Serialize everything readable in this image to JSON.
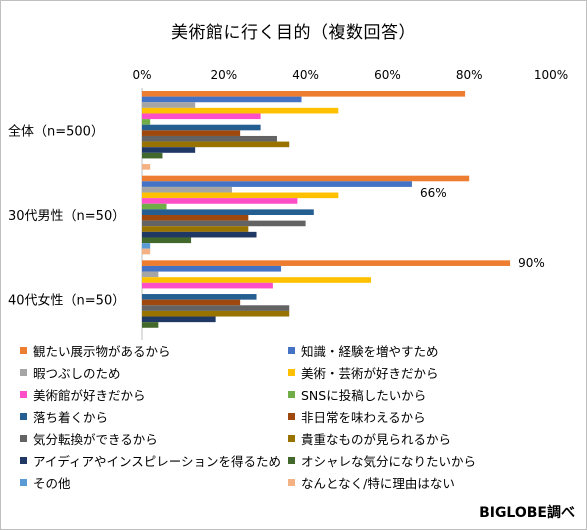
{
  "chart_data": {
    "type": "bar",
    "orientation": "horizontal",
    "title": "美術館に行く目的（複数回答）",
    "xlim": [
      0,
      100
    ],
    "x_ticks": [
      "0%",
      "20%",
      "40%",
      "60%",
      "80%",
      "100%"
    ],
    "x_axis_position": "top",
    "categories": [
      "全体（n=500）",
      "30代男性（n=50）",
      "40代女性（n=50）"
    ],
    "series": [
      {
        "name": "観たい展示物があるから",
        "color": "#ED7D31",
        "values": [
          79,
          80,
          90
        ]
      },
      {
        "name": "知識・経験を増やすため",
        "color": "#4472C4",
        "values": [
          39,
          66,
          34
        ]
      },
      {
        "name": "暇つぶしのため",
        "color": "#A5A5A5",
        "values": [
          13,
          22,
          4
        ]
      },
      {
        "name": "美術・芸術が好きだから",
        "color": "#FFC000",
        "values": [
          48,
          48,
          56
        ]
      },
      {
        "name": "美術館が好きだから",
        "color": "#FF4FC8",
        "values": [
          29,
          38,
          32
        ]
      },
      {
        "name": "SNSに投稿したいから",
        "color": "#70AD47",
        "values": [
          2,
          6,
          0
        ]
      },
      {
        "name": "落ち着くから",
        "color": "#255E91",
        "values": [
          29,
          42,
          28
        ]
      },
      {
        "name": "非日常を味わえるから",
        "color": "#9E480E",
        "values": [
          24,
          26,
          24
        ]
      },
      {
        "name": "気分転換ができるから",
        "color": "#636363",
        "values": [
          33,
          40,
          36
        ]
      },
      {
        "name": "貴重なものが見られるから",
        "color": "#997300",
        "values": [
          36,
          26,
          36
        ]
      },
      {
        "name": "アイディアやインスピレーションを得るため",
        "color": "#203864",
        "values": [
          13,
          28,
          18
        ]
      },
      {
        "name": "オシャレな気分になりたいから",
        "color": "#43682B",
        "values": [
          5,
          12,
          4
        ]
      },
      {
        "name": "その他",
        "color": "#5B9BD5",
        "values": [
          0,
          2,
          0
        ]
      },
      {
        "name": "なんとなく/特に理由はない",
        "color": "#F4B183",
        "values": [
          2,
          2,
          0
        ]
      }
    ],
    "data_labels": [
      {
        "category": 1,
        "series": 1,
        "text": "66%"
      },
      {
        "category": 2,
        "series": 0,
        "text": "90%"
      }
    ],
    "legend_position": "bottom"
  },
  "source": "BIGLOBE調べ"
}
